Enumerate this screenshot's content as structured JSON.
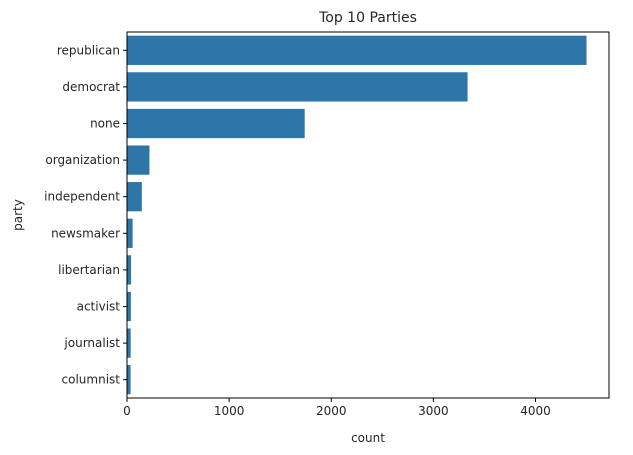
{
  "chart_data": {
    "type": "bar",
    "orientation": "horizontal",
    "title": "Top 10 Parties",
    "xlabel": "count",
    "ylabel": "party",
    "categories": [
      "republican",
      "democrat",
      "none",
      "organization",
      "independent",
      "newsmaker",
      "libertarian",
      "activist",
      "journalist",
      "columnist"
    ],
    "values": [
      4500,
      3335,
      1740,
      220,
      145,
      55,
      40,
      38,
      36,
      35
    ],
    "xlim": [
      0,
      4720
    ],
    "xticks": [
      0,
      1000,
      2000,
      3000,
      4000
    ],
    "grid": false,
    "bar_color": "#2e75a8"
  }
}
